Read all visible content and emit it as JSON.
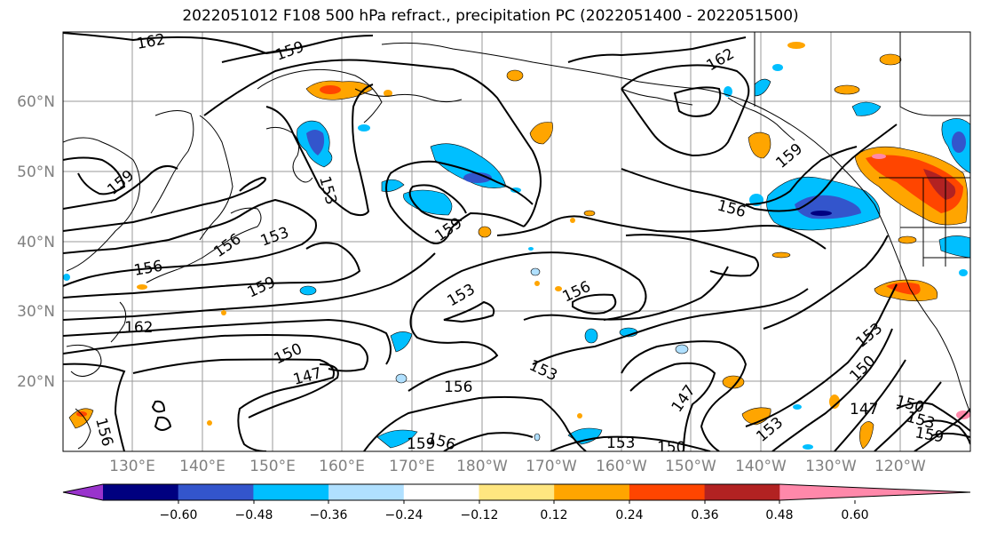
{
  "title": "2022051012 F108 500 hPa refract., precipitation PC (2022051400 - 2022051500)",
  "lat_labels": [
    "60°N",
    "50°N",
    "40°N",
    "30°N",
    "20°N"
  ],
  "lon_labels": [
    "130°E",
    "140°E",
    "150°E",
    "160°E",
    "170°E",
    "180°W",
    "170°W",
    "160°W",
    "150°W",
    "140°W",
    "130°W",
    "120°W"
  ],
  "contour_labels": [
    "162",
    "159",
    "159",
    "162",
    "159",
    "153",
    "159",
    "156",
    "156",
    "153",
    "159",
    "156",
    "153",
    "156",
    "162",
    "150",
    "147",
    "153",
    "156",
    "156",
    "159",
    "153",
    "150",
    "147",
    "153",
    "150",
    "153",
    "147",
    "150",
    "153",
    "159",
    "156"
  ],
  "colorbar": {
    "colors": [
      "#9933cc",
      "#000080",
      "#3355cc",
      "#00bfff",
      "#b0e0ff",
      "#ffffff",
      "#ffe680",
      "#ffa500",
      "#ff4500",
      "#b22222",
      "#ff88aa"
    ],
    "tick_labels": [
      "−0.60",
      "−0.48",
      "−0.36",
      "−0.24",
      "−0.12",
      "0.12",
      "0.24",
      "0.36",
      "0.48",
      "0.60"
    ]
  }
}
